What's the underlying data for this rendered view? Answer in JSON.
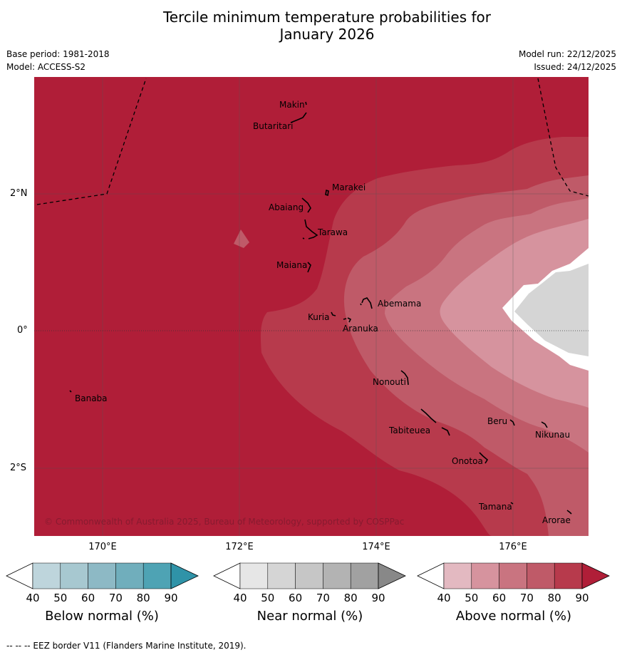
{
  "header": {
    "title_line1": "Tercile minimum temperature probabilities for",
    "title_line2": "January 2026",
    "base_period": "Base period: 1981-2018",
    "model": "Model: ACCESS-S2",
    "model_run": "Model run: 22/12/2025",
    "issued": "Issued: 24/12/2025"
  },
  "map": {
    "lat_labels": [
      "2°N",
      "0°",
      "2°S"
    ],
    "lon_labels": [
      "170°E",
      "172°E",
      "174°E",
      "176°E"
    ],
    "copyright": "© Commonwealth of Australia 2025, Bureau of Meteorology, supported by COSPPac",
    "places": [
      "Makin",
      "Butaritari",
      "Marakei",
      "Abaiang",
      "Tarawa",
      "Maiana",
      "Abemama",
      "Kuria",
      "Aranuka",
      "Nonouti",
      "Banaba",
      "Beru",
      "Nikunau",
      "Tabiteuea",
      "Onotoa",
      "Tamana",
      "Arorae"
    ],
    "fill_levels": {
      "base": "Above normal 80-90%",
      "zones": [
        "Above normal 70-80%",
        "Above normal 60-70%",
        "Above normal 50-60%",
        "Near normal 50-60%"
      ]
    }
  },
  "legend": {
    "ticks": [
      "40",
      "50",
      "60",
      "70",
      "80",
      "90"
    ],
    "below": {
      "title": "Below normal (%)",
      "colors": [
        "#ffffff",
        "#bed5dc",
        "#a7c8d0",
        "#8db9c5",
        "#70aebc",
        "#4ea3b4",
        "#2f93a8"
      ]
    },
    "near": {
      "title": "Near normal (%)",
      "colors": [
        "#ffffff",
        "#e6e6e6",
        "#d5d5d5",
        "#c6c6c6",
        "#b3b3b3",
        "#a1a1a1",
        "#888888"
      ]
    },
    "above": {
      "title": "Above normal (%)",
      "colors": [
        "#ffffff",
        "#e3b9c1",
        "#d6939e",
        "#c97480",
        "#bf5a68",
        "#b73a4c",
        "#b01e38"
      ]
    }
  },
  "footnote": "--  --  -- EEZ border V11 (Flanders Marine Institute, 2019)."
}
